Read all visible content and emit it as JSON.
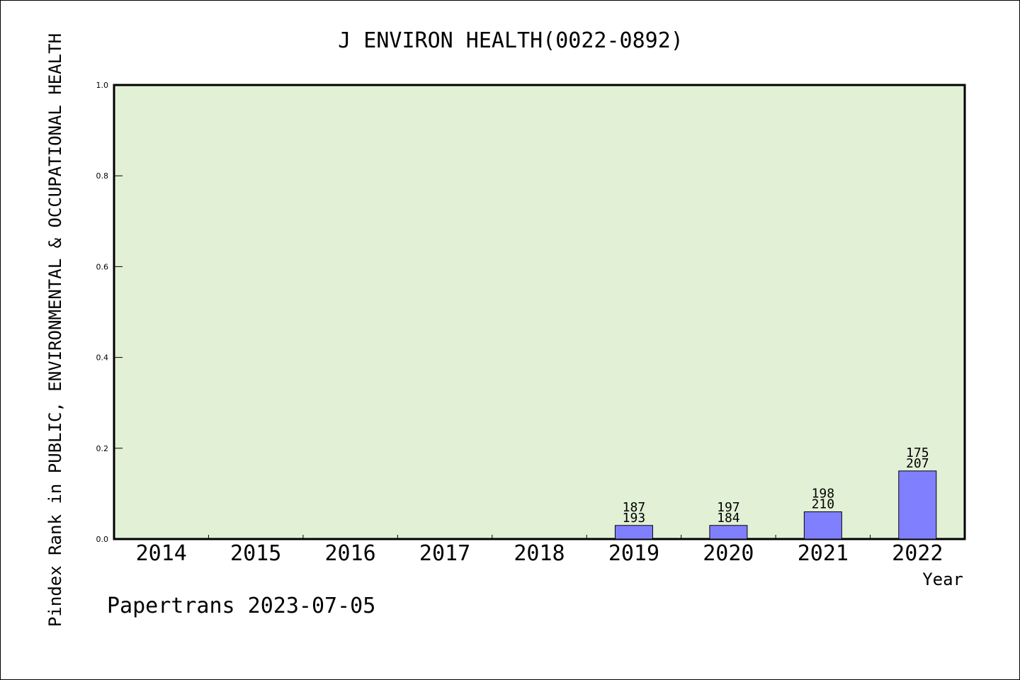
{
  "chart_data": {
    "type": "bar",
    "title": "J ENVIRON HEALTH(0022-0892)",
    "xlabel": "Year",
    "ylabel": "Pindex Rank in PUBLIC, ENVIRONMENTAL & OCCUPATIONAL HEALTH",
    "ylim": [
      0,
      1.0
    ],
    "yticks": [
      "0.0",
      "0.2",
      "0.4",
      "0.6",
      "0.8",
      "1.0"
    ],
    "categories": [
      "2014",
      "2015",
      "2016",
      "2017",
      "2018",
      "2019",
      "2020",
      "2021",
      "2022"
    ],
    "values": [
      null,
      null,
      null,
      null,
      null,
      0.03,
      0.03,
      0.06,
      0.15
    ],
    "bar_labels": [
      null,
      null,
      null,
      null,
      null,
      [
        "187",
        "193"
      ],
      [
        "197",
        "184"
      ],
      [
        "198",
        "210"
      ],
      [
        "175",
        "207"
      ]
    ],
    "grid": false,
    "legend": "none",
    "colors": {
      "plot_background": "#e2f0d6",
      "bar_fill": "#8080ff",
      "bar_stroke": "#000000",
      "axis": "#000000"
    }
  },
  "footer": {
    "credit": "Papertrans 2023-07-05"
  }
}
